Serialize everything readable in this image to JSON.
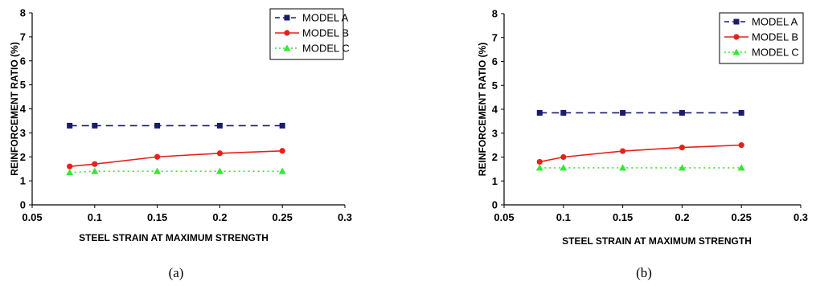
{
  "chart_data": [
    {
      "type": "line",
      "caption": "(a)",
      "xlabel": "STEEL STRAIN AT MAXIMUM STRENGTH",
      "ylabel": "REINFORCEMENT RATIO (%)",
      "xlim": [
        0.05,
        0.3
      ],
      "ylim": [
        0,
        8
      ],
      "x_ticks": [
        "0.05",
        "0.1",
        "0.15",
        "0.2",
        "0.25",
        "0.3"
      ],
      "y_ticks": [
        "0",
        "1",
        "2",
        "3",
        "4",
        "5",
        "6",
        "7",
        "8"
      ],
      "grid": false,
      "legend": "top-right",
      "x": [
        0.08,
        0.1,
        0.15,
        0.2,
        0.25
      ],
      "series": [
        {
          "name": "MODEL A",
          "values": [
            3.3,
            3.3,
            3.3,
            3.3,
            3.3
          ],
          "color": "#1a1a6e",
          "marker": "square",
          "line": "dashed"
        },
        {
          "name": "MODEL B",
          "values": [
            1.6,
            1.7,
            2.0,
            2.15,
            2.25
          ],
          "color": "#e8201c",
          "marker": "circle",
          "line": "solid"
        },
        {
          "name": "MODEL C",
          "values": [
            1.35,
            1.4,
            1.4,
            1.4,
            1.4
          ],
          "color": "#33e833",
          "marker": "triangle",
          "line": "dotted"
        }
      ]
    },
    {
      "type": "line",
      "caption": "(b)",
      "xlabel": "STEEL STRAIN AT MAXIMUM STRENGTH",
      "ylabel": "REINFORCEMENT RATIO (%)",
      "xlim": [
        0.05,
        0.3
      ],
      "ylim": [
        0,
        8
      ],
      "x_ticks": [
        "0.05",
        "0.1",
        "0.15",
        "0.2",
        "0.25",
        "0.3"
      ],
      "y_ticks": [
        "0",
        "1",
        "2",
        "3",
        "4",
        "5",
        "6",
        "7",
        "8"
      ],
      "grid": false,
      "legend": "top-right",
      "x": [
        0.08,
        0.1,
        0.15,
        0.2,
        0.25
      ],
      "series": [
        {
          "name": "MODEL A",
          "values": [
            3.85,
            3.85,
            3.85,
            3.85,
            3.85
          ],
          "color": "#1a1a6e",
          "marker": "square",
          "line": "dashed"
        },
        {
          "name": "MODEL B",
          "values": [
            1.8,
            2.0,
            2.25,
            2.4,
            2.5
          ],
          "color": "#e8201c",
          "marker": "circle",
          "line": "solid"
        },
        {
          "name": "MODEL C",
          "values": [
            1.55,
            1.55,
            1.55,
            1.55,
            1.55
          ],
          "color": "#33e833",
          "marker": "triangle",
          "line": "dotted"
        }
      ]
    }
  ]
}
